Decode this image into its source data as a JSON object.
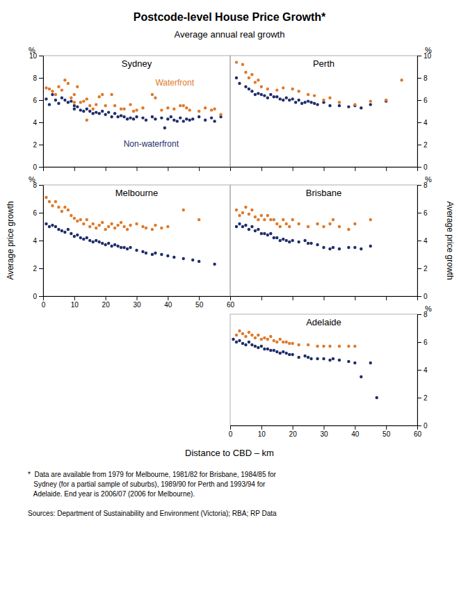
{
  "title": "Postcode-level House Price Growth*",
  "subtitle": "Average annual real growth",
  "xlabel": "Distance to CBD – km",
  "ylabel": "Average price growth",
  "y2label": "Average price growth",
  "annotations": [
    "*  Data are available from 1979 for Melbourne, 1981/82 for Brisbane, 1984/85 for\n   Sydney (for a partial sample of suburbs), 1989/90 for Perth and 1993/94 for\n   Adelaide. End year is 2006/07 (2006 for Melbourne).",
    "Sources: Department of Sustainability and Environment (Victoria); RBA; RP Data"
  ],
  "chart_data": [
    {
      "type": "scatter",
      "title": "Sydney",
      "ylabel": "%",
      "tick_labels": "y",
      "xlim": [
        0,
        60
      ],
      "xticks": [
        0,
        10,
        20,
        30,
        40,
        50,
        60
      ],
      "ylim": [
        0,
        10
      ],
      "yticks": [
        0,
        2,
        4,
        6,
        8,
        10
      ],
      "series": [
        {
          "name": "Non-waterfront",
          "color": "#1F2D6B",
          "x": [
            1,
            2,
            3,
            4,
            5,
            6,
            7,
            8,
            9,
            10,
            10,
            11,
            12,
            13,
            14,
            15,
            16,
            17,
            18,
            19,
            20,
            21,
            22,
            23,
            24,
            25,
            26,
            27,
            28,
            29,
            30,
            32,
            33,
            35,
            36,
            38,
            39,
            40,
            41,
            42,
            43,
            44,
            45,
            46,
            47,
            48,
            50,
            52,
            54,
            55,
            57
          ],
          "values": [
            6.1,
            5.6,
            6.5,
            6.0,
            5.7,
            6.2,
            6.0,
            5.8,
            5.9,
            5.5,
            5.2,
            5.4,
            5.1,
            5.0,
            5.2,
            5.0,
            4.8,
            4.9,
            4.8,
            5.0,
            4.7,
            4.9,
            4.5,
            4.8,
            4.5,
            4.6,
            4.5,
            4.3,
            4.4,
            4.3,
            4.5,
            4.4,
            4.2,
            4.5,
            4.3,
            4.4,
            3.5,
            4.3,
            4.5,
            4.2,
            4.1,
            4.4,
            4.1,
            4.3,
            4.2,
            4.3,
            4.5,
            4.2,
            4.4,
            4.1,
            4.5
          ]
        },
        {
          "name": "Waterfront",
          "color": "#E07828",
          "x": [
            1,
            2,
            3,
            4,
            5,
            6,
            7,
            8,
            9,
            10,
            10,
            11,
            12,
            13,
            14,
            14,
            15,
            16,
            17,
            18,
            19,
            20,
            22,
            23,
            25,
            26,
            28,
            29,
            30,
            32,
            35,
            36,
            38,
            40,
            42,
            44,
            45,
            46,
            47,
            50,
            52,
            54,
            55,
            57
          ],
          "values": [
            7.1,
            7.0,
            6.8,
            6.5,
            7.2,
            6.9,
            7.8,
            7.5,
            6.2,
            6.5,
            5.8,
            7.2,
            5.8,
            5.9,
            6.1,
            4.2,
            5.5,
            5.2,
            5.6,
            6.3,
            6.5,
            5.5,
            6.5,
            5.5,
            5.2,
            5.2,
            5.6,
            5.0,
            5.1,
            5.3,
            6.5,
            6.2,
            5.1,
            5.3,
            5.2,
            5.5,
            5.5,
            5.3,
            5.1,
            5.0,
            5.3,
            5.1,
            5.2,
            4.7
          ]
        }
      ]
    },
    {
      "type": "scatter",
      "title": "Perth",
      "ylabel": "%",
      "tick_labels": "y",
      "xlim": [
        0,
        60
      ],
      "xticks": [
        0,
        10,
        20,
        30,
        40,
        50,
        60
      ],
      "ylim": [
        0,
        10
      ],
      "yticks": [
        0,
        2,
        4,
        6,
        8,
        10
      ],
      "series": [
        {
          "name": "Non-waterfront",
          "color": "#1F2D6B",
          "x": [
            2,
            3,
            5,
            6,
            7,
            8,
            9,
            10,
            11,
            12,
            13,
            14,
            15,
            16,
            17,
            18,
            19,
            20,
            21,
            22,
            23,
            24,
            25,
            26,
            27,
            28,
            30,
            32,
            35,
            38,
            40,
            42,
            45,
            50
          ],
          "values": [
            8.0,
            7.5,
            7.2,
            7.0,
            6.8,
            6.5,
            6.6,
            6.5,
            6.4,
            6.2,
            6.5,
            6.3,
            6.3,
            6.1,
            6.0,
            6.2,
            6.0,
            6.1,
            5.8,
            6.0,
            5.7,
            5.8,
            5.9,
            5.8,
            5.7,
            5.6,
            5.8,
            5.5,
            5.5,
            5.4,
            5.5,
            5.3,
            5.6,
            5.9
          ]
        },
        {
          "name": "Waterfront",
          "color": "#E07828",
          "x": [
            2,
            4,
            5,
            6,
            7,
            8,
            9,
            10,
            12,
            15,
            17,
            20,
            22,
            25,
            27,
            30,
            32,
            35,
            40,
            45,
            50,
            55
          ],
          "values": [
            9.4,
            9.2,
            8.5,
            8.0,
            8.3,
            7.6,
            7.8,
            7.2,
            7.0,
            6.9,
            7.1,
            7.0,
            6.8,
            6.5,
            6.4,
            6.0,
            6.2,
            5.8,
            5.6,
            5.9,
            6.0,
            7.8
          ]
        }
      ]
    },
    {
      "type": "scatter",
      "title": "Melbourne",
      "ylabel": "%",
      "xlim": [
        0,
        60
      ],
      "xticks": [
        0,
        10,
        20,
        30,
        40,
        50,
        60
      ],
      "ylim": [
        0,
        8
      ],
      "yticks": [
        0,
        2,
        4,
        6,
        8
      ],
      "series": [
        {
          "name": "Non-waterfront",
          "color": "#1F2D6B",
          "x": [
            1,
            2,
            3,
            4,
            5,
            6,
            7,
            8,
            9,
            10,
            11,
            12,
            13,
            14,
            15,
            16,
            17,
            18,
            19,
            20,
            21,
            22,
            23,
            24,
            25,
            26,
            27,
            28,
            30,
            32,
            33,
            35,
            36,
            38,
            40,
            42,
            45,
            48,
            50,
            55
          ],
          "values": [
            5.2,
            5.0,
            5.1,
            5.0,
            4.8,
            4.7,
            4.6,
            4.8,
            4.5,
            4.3,
            4.4,
            4.2,
            4.1,
            4.2,
            4.0,
            3.9,
            4.0,
            3.9,
            3.8,
            3.7,
            3.8,
            3.6,
            3.7,
            3.6,
            3.5,
            3.5,
            3.4,
            3.5,
            3.3,
            3.2,
            3.1,
            3.0,
            3.1,
            3.0,
            2.9,
            2.8,
            2.7,
            2.6,
            2.5,
            2.3
          ]
        },
        {
          "name": "Waterfront",
          "color": "#E07828",
          "x": [
            1,
            2,
            3,
            4,
            5,
            6,
            7,
            8,
            9,
            10,
            11,
            12,
            13,
            14,
            15,
            16,
            17,
            18,
            19,
            20,
            21,
            22,
            23,
            24,
            25,
            26,
            27,
            28,
            30,
            32,
            33,
            35,
            36,
            38,
            40,
            45,
            50
          ],
          "values": [
            7.1,
            6.8,
            6.5,
            6.8,
            6.4,
            6.1,
            6.4,
            6.2,
            5.8,
            5.6,
            5.4,
            5.5,
            5.2,
            5.5,
            5.0,
            5.2,
            4.9,
            5.1,
            5.3,
            4.8,
            5.0,
            5.2,
            4.9,
            5.1,
            5.3,
            5.0,
            4.8,
            5.1,
            5.2,
            5.0,
            4.9,
            4.8,
            5.1,
            4.9,
            5.0,
            6.2,
            5.5
          ]
        }
      ]
    },
    {
      "type": "scatter",
      "title": "Brisbane",
      "ylabel": "%",
      "tick_labels": "y",
      "xlim": [
        0,
        60
      ],
      "xticks": [
        0,
        10,
        20,
        30,
        40,
        50,
        60
      ],
      "ylim": [
        0,
        8
      ],
      "yticks": [
        0,
        2,
        4,
        6,
        8
      ],
      "series": [
        {
          "name": "Non-waterfront",
          "color": "#1F2D6B",
          "x": [
            2,
            3,
            4,
            5,
            6,
            7,
            8,
            9,
            10,
            11,
            12,
            13,
            14,
            15,
            16,
            17,
            18,
            19,
            20,
            22,
            24,
            25,
            26,
            28,
            30,
            32,
            33,
            35,
            38,
            40,
            42,
            45
          ],
          "values": [
            5.0,
            5.2,
            5.0,
            5.1,
            4.8,
            5.0,
            4.7,
            4.8,
            4.5,
            4.5,
            4.4,
            4.5,
            4.2,
            4.2,
            4.0,
            4.1,
            4.0,
            3.9,
            4.0,
            3.9,
            4.0,
            3.8,
            3.8,
            3.7,
            3.5,
            3.4,
            3.5,
            3.4,
            3.5,
            3.5,
            3.4,
            3.6
          ]
        },
        {
          "name": "Waterfront",
          "color": "#E07828",
          "x": [
            2,
            3,
            4,
            5,
            6,
            7,
            8,
            9,
            10,
            11,
            12,
            13,
            14,
            15,
            16,
            17,
            18,
            19,
            20,
            22,
            25,
            28,
            30,
            32,
            33,
            35,
            38,
            40,
            45
          ],
          "values": [
            6.2,
            5.8,
            6.0,
            6.4,
            5.9,
            6.2,
            5.7,
            5.5,
            5.8,
            5.5,
            5.8,
            5.5,
            5.5,
            5.2,
            5.0,
            5.5,
            5.2,
            5.0,
            5.5,
            5.2,
            5.0,
            5.2,
            5.0,
            5.2,
            5.5,
            5.0,
            4.8,
            5.2,
            5.5
          ]
        }
      ]
    },
    {
      "type": "scatter",
      "title": "Adelaide",
      "ylabel": "%",
      "xlim": [
        0,
        60
      ],
      "xticks": [
        0,
        10,
        20,
        30,
        40,
        50,
        60
      ],
      "ylim": [
        0,
        8
      ],
      "yticks": [
        0,
        2,
        4,
        6,
        8
      ],
      "series": [
        {
          "name": "Non-waterfront",
          "color": "#1F2D6B",
          "x": [
            1,
            2,
            3,
            4,
            5,
            6,
            7,
            8,
            9,
            10,
            11,
            12,
            13,
            14,
            15,
            16,
            17,
            18,
            19,
            20,
            22,
            24,
            25,
            26,
            28,
            30,
            32,
            33,
            35,
            38,
            40,
            42,
            45,
            47
          ],
          "values": [
            6.2,
            6.0,
            6.1,
            5.9,
            5.8,
            6.0,
            5.8,
            5.7,
            5.6,
            5.7,
            5.5,
            5.5,
            5.4,
            5.4,
            5.3,
            5.2,
            5.3,
            5.2,
            5.1,
            5.1,
            4.9,
            5.0,
            4.9,
            4.8,
            4.8,
            4.8,
            4.7,
            4.8,
            4.7,
            4.6,
            4.5,
            3.5,
            4.5,
            2.0
          ]
        },
        {
          "name": "Waterfront",
          "color": "#E07828",
          "x": [
            2,
            3,
            4,
            5,
            6,
            7,
            8,
            9,
            10,
            11,
            12,
            13,
            14,
            15,
            16,
            17,
            18,
            19,
            20,
            22,
            25,
            28,
            30,
            32,
            35,
            38,
            40
          ],
          "values": [
            6.5,
            6.8,
            6.6,
            6.4,
            6.7,
            6.5,
            6.3,
            6.5,
            6.2,
            6.3,
            6.2,
            6.4,
            6.1,
            6.0,
            6.2,
            6.0,
            6.0,
            5.9,
            5.9,
            5.8,
            5.8,
            5.7,
            5.7,
            5.7,
            5.7,
            5.7,
            5.7
          ]
        }
      ]
    }
  ]
}
